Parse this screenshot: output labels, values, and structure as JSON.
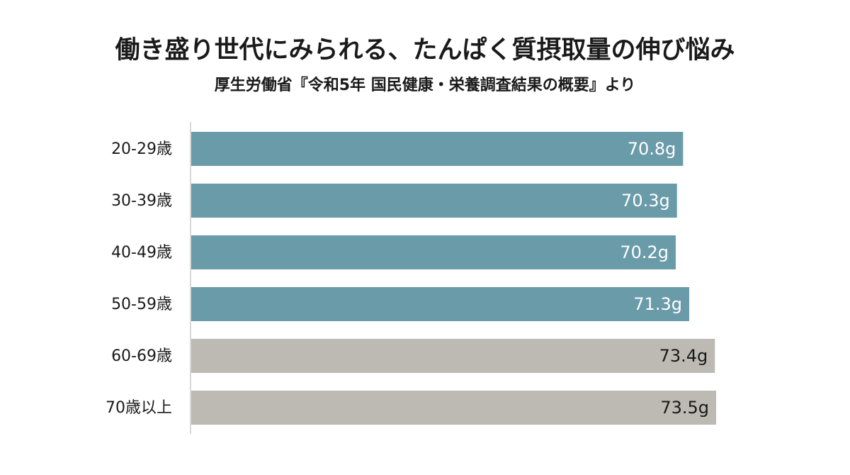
{
  "chart_data": {
    "type": "bar",
    "orientation": "horizontal",
    "title": "働き盛り世代にみられる、たんぱく質摂取量の伸び悩み",
    "subtitle": "厚生労働省『令和5年 国民健康・栄養調査結果の概要』より",
    "categories": [
      "20-29歳",
      "30-39歳",
      "40-49歳",
      "50-59歳",
      "60-69歳",
      "70歳以上"
    ],
    "values": [
      70.8,
      70.3,
      70.2,
      71.3,
      73.4,
      73.5
    ],
    "value_labels": [
      "70.8g",
      "70.3g",
      "70.2g",
      "71.3g",
      "73.4g",
      "73.5g"
    ],
    "colors": [
      "#6a9ba9",
      "#6a9ba9",
      "#6a9ba9",
      "#6a9ba9",
      "#bdb9b3",
      "#bdb9b3"
    ],
    "xlim": [
      30.6,
      74.6
    ]
  }
}
